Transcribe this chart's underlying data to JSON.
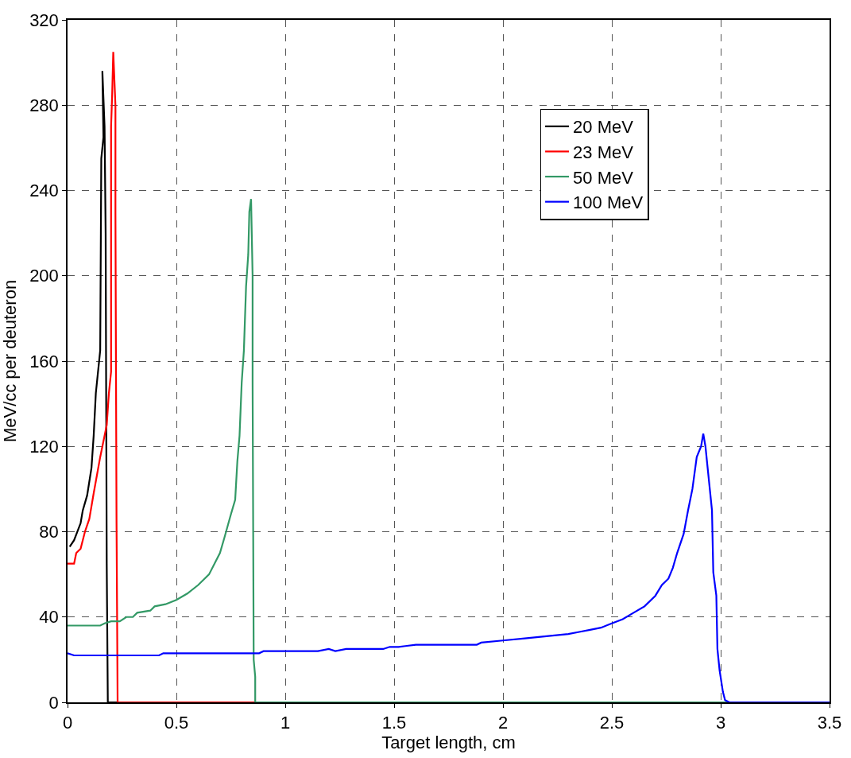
{
  "chart_data": {
    "type": "line",
    "xlabel": "Target length, cm",
    "ylabel": "MeV/cc per deuteron",
    "xlim": [
      0,
      3.5
    ],
    "xticks": [
      0,
      0.5,
      1,
      1.5,
      2,
      2.5,
      3,
      3.5
    ],
    "ylim": [
      0,
      320
    ],
    "yticks": [
      0,
      40,
      80,
      120,
      160,
      200,
      240,
      280,
      320
    ],
    "grid": true,
    "legend": "top right",
    "line_style": "solid",
    "marker": "none",
    "series": [
      {
        "name": "20 MeV",
        "color": "#000000",
        "x": [
          0.01,
          0.03,
          0.06,
          0.07,
          0.09,
          0.11,
          0.12,
          0.13,
          0.15,
          0.155,
          0.165,
          0.16,
          0.17,
          0.175,
          0.18,
          0.185,
          3.5
        ],
        "values": [
          73,
          76,
          84,
          90,
          97,
          110,
          125,
          145,
          165,
          255,
          265,
          296,
          270,
          220,
          65,
          0,
          0
        ]
      },
      {
        "name": "23 MeV",
        "color": "#ff0000",
        "x": [
          0.0,
          0.03,
          0.04,
          0.06,
          0.08,
          0.1,
          0.12,
          0.15,
          0.18,
          0.19,
          0.2,
          0.2,
          0.205,
          0.21,
          0.22,
          0.22,
          0.225,
          0.23,
          3.5
        ],
        "values": [
          65,
          65,
          70,
          72,
          80,
          86,
          98,
          115,
          130,
          145,
          155,
          270,
          285,
          305,
          280,
          230,
          85,
          0,
          0
        ]
      },
      {
        "name": "50 MeV",
        "color": "#339966",
        "x": [
          0,
          0.15,
          0.17,
          0.2,
          0.24,
          0.27,
          0.3,
          0.32,
          0.38,
          0.4,
          0.45,
          0.5,
          0.55,
          0.6,
          0.65,
          0.68,
          0.7,
          0.72,
          0.75,
          0.77,
          0.78,
          0.79,
          0.8,
          0.81,
          0.82,
          0.83,
          0.835,
          0.843,
          0.85,
          0.85,
          0.855,
          0.862,
          0.862,
          3.5
        ],
        "values": [
          36,
          36,
          37,
          38,
          38,
          40,
          40,
          42,
          43,
          45,
          46,
          48,
          51,
          55,
          60,
          66,
          70,
          77,
          88,
          95,
          113,
          125,
          150,
          165,
          195,
          210,
          230,
          236,
          200,
          150,
          20,
          12,
          0,
          0
        ]
      },
      {
        "name": "100 MeV",
        "color": "#0000ff",
        "x": [
          0,
          0.03,
          0.2,
          0.42,
          0.44,
          0.88,
          0.9,
          1.15,
          1.2,
          1.23,
          1.28,
          1.45,
          1.48,
          1.52,
          1.6,
          1.88,
          1.9,
          2.0,
          2.1,
          2.2,
          2.3,
          2.35,
          2.4,
          2.45,
          2.5,
          2.55,
          2.6,
          2.65,
          2.7,
          2.73,
          2.76,
          2.78,
          2.8,
          2.83,
          2.85,
          2.87,
          2.89,
          2.91,
          2.92,
          2.93,
          2.94,
          2.96,
          2.966,
          2.98,
          2.985,
          2.995,
          3.01,
          3.02,
          3.04,
          3.5
        ],
        "values": [
          23,
          22,
          22,
          22,
          23,
          23,
          24,
          24,
          25,
          24,
          25,
          25,
          26,
          26,
          27,
          27,
          28,
          29,
          30,
          31,
          32,
          33,
          34,
          35,
          37,
          39,
          42,
          45,
          50,
          55,
          58,
          63,
          70,
          79,
          90,
          100,
          115,
          120,
          126,
          120,
          110,
          90,
          61,
          50,
          25,
          15,
          5,
          1,
          0,
          0
        ]
      }
    ]
  }
}
